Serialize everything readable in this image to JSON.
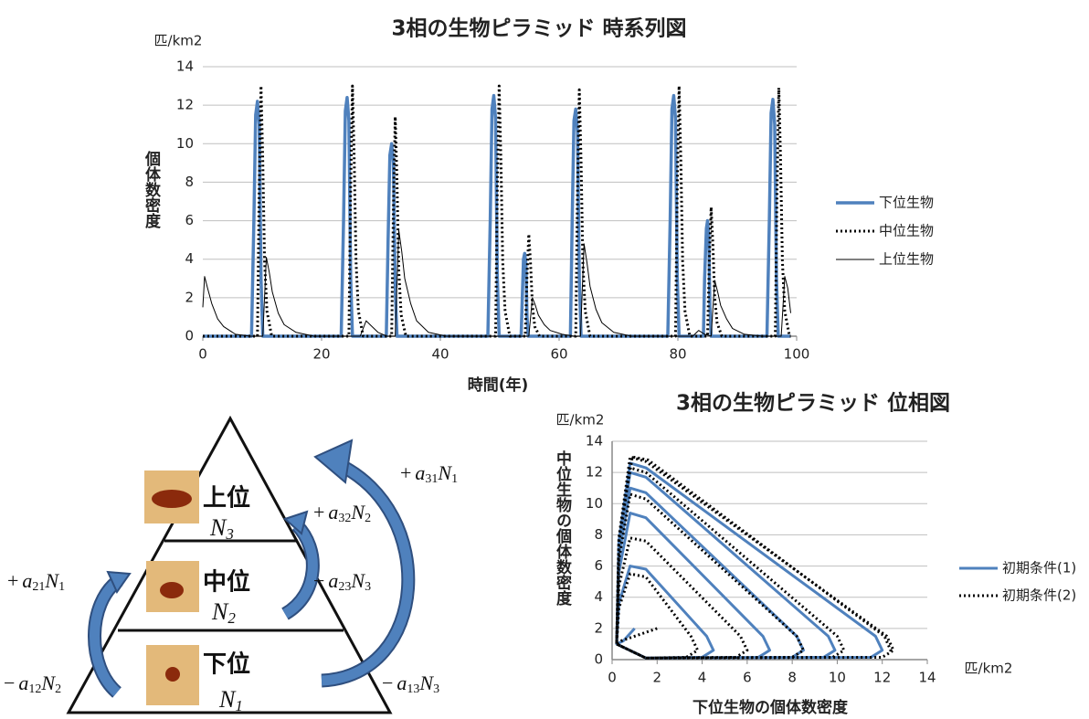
{
  "chart_data": [
    {
      "type": "line",
      "title": "3相の生物ピラミッド 時系列図",
      "y_unit": "匹/km2",
      "ylabel": "個体数密度",
      "xlabel": "時間(年)",
      "xlim": [
        0,
        100
      ],
      "xticks": [
        0,
        20,
        40,
        60,
        80,
        100
      ],
      "ylim": [
        0,
        14
      ],
      "yticks": [
        0,
        2,
        4,
        6,
        8,
        10,
        12,
        14
      ],
      "grid": true,
      "legend": "right",
      "series": [
        {
          "name": "下位生物",
          "color": "#4f81bd",
          "style": "solid",
          "width": 3.5,
          "x": [
            0,
            8.2,
            8.6,
            8.9,
            9.2,
            9.5,
            9.8,
            10.1,
            23.3,
            23.7,
            24.0,
            24.3,
            24.6,
            24.9,
            25.2,
            30.9,
            31.2,
            31.5,
            31.8,
            32.1,
            32.4,
            32.7,
            48.0,
            48.4,
            48.7,
            49.0,
            49.3,
            49.6,
            49.9,
            53.6,
            53.8,
            54.0,
            54.2,
            54.4,
            54.6,
            54.8,
            61.9,
            62.2,
            62.5,
            62.8,
            63.1,
            63.4,
            63.7,
            78.3,
            78.7,
            79.0,
            79.3,
            79.6,
            79.9,
            80.2,
            84.3,
            84.5,
            84.8,
            85.0,
            85.2,
            85.4,
            85.6,
            95.0,
            95.4,
            95.7,
            96.0,
            96.3,
            96.6,
            96.9,
            99
          ],
          "values": [
            0,
            0,
            6,
            11.5,
            12.2,
            11,
            3,
            0,
            0,
            6,
            11.7,
            12.4,
            11.2,
            3,
            0,
            0,
            5,
            9.4,
            10,
            9,
            2.5,
            0,
            0,
            6,
            11.8,
            12.5,
            11.3,
            3,
            0,
            0,
            2,
            4,
            4.3,
            3.8,
            1,
            0,
            0,
            6,
            11.2,
            11.8,
            10.6,
            3,
            0,
            0,
            6,
            11.8,
            12.5,
            11.3,
            3,
            0,
            0,
            3,
            5.6,
            6,
            5.2,
            1.5,
            0,
            0,
            6,
            11.6,
            12.3,
            11,
            3,
            0,
            0
          ]
        },
        {
          "name": "中位生物",
          "color": "#000000",
          "style": "dotted",
          "width": 3,
          "x": [
            0,
            9.2,
            9.5,
            9.8,
            10.1,
            10.4,
            10.8,
            11.6,
            24.6,
            24.9,
            25.2,
            25.5,
            25.8,
            26.2,
            27.0,
            31.8,
            32.1,
            32.4,
            32.7,
            33.0,
            33.4,
            34.2,
            49.3,
            49.6,
            49.9,
            50.2,
            50.5,
            50.9,
            51.7,
            54.3,
            54.6,
            54.9,
            55.2,
            55.5,
            55.9,
            56.7,
            62.8,
            63.1,
            63.4,
            63.7,
            64.0,
            64.4,
            65.2,
            79.6,
            79.9,
            80.2,
            80.5,
            80.8,
            81.2,
            82.0,
            85.0,
            85.3,
            85.6,
            85.9,
            86.2,
            86.6,
            87.4,
            96.4,
            96.7,
            97.0,
            97.3,
            97.6,
            98.0,
            98.8,
            99
          ],
          "values": [
            0,
            0,
            7.8,
            13,
            9.1,
            3.9,
            1.3,
            0,
            0,
            7.8,
            13,
            9.1,
            3.9,
            1.3,
            0,
            0,
            6.8,
            11.4,
            8,
            3.4,
            1.1,
            0,
            0,
            7.8,
            13,
            9.1,
            3.9,
            1.3,
            0,
            0,
            3.2,
            5.3,
            3.7,
            1.6,
            0.5,
            0,
            0,
            7.7,
            12.8,
            9,
            3.8,
            1.3,
            0,
            0,
            7.8,
            13,
            9.1,
            3.9,
            1.3,
            0,
            0,
            4,
            6.7,
            4.7,
            2,
            0.7,
            0,
            0,
            7.7,
            12.9,
            9,
            3.9,
            1.3,
            0,
            0
          ]
        },
        {
          "name": "上位生物",
          "color": "#000000",
          "style": "solid",
          "width": 1,
          "x": [
            0,
            0.3,
            0.8,
            1.5,
            2.5,
            3.5,
            5.5,
            8,
            10.1,
            10.7,
            11.2,
            11.7,
            12.7,
            13.7,
            15.7,
            18.7,
            26.5,
            27.5,
            28.5,
            29.5,
            31,
            32.4,
            33,
            33.5,
            34,
            35,
            36,
            38,
            41,
            54.9,
            55.5,
            56,
            56.5,
            57.5,
            58.5,
            60.5,
            62.5,
            63.6,
            64.2,
            64.7,
            65.2,
            66.2,
            67.2,
            69.2,
            72.2,
            82.5,
            83.5,
            84.5,
            85.6,
            86.2,
            86.7,
            87.2,
            88.2,
            89.2,
            91.2,
            94.2,
            97.4,
            98,
            98.5,
            99
          ],
          "values": [
            1.5,
            3.1,
            2.5,
            1.7,
            0.9,
            0.5,
            0.1,
            0,
            0,
            4.1,
            3.3,
            2.3,
            1.2,
            0.6,
            0.2,
            0,
            0,
            0.8,
            0.5,
            0.2,
            0,
            0,
            5.5,
            4.4,
            3,
            1.7,
            0.8,
            0.2,
            0,
            0,
            2,
            1.6,
            1.1,
            0.6,
            0.3,
            0.1,
            0,
            0,
            4.8,
            3.8,
            2.6,
            1.4,
            0.7,
            0.2,
            0,
            0,
            0.3,
            0.1,
            0,
            2.9,
            2.3,
            1.6,
            0.9,
            0.4,
            0.1,
            0,
            0,
            3.1,
            2.5,
            1.2
          ]
        }
      ]
    },
    {
      "type": "line",
      "title": "3相の生物ピラミッド 位相図",
      "y_unit": "匹/km2",
      "x_unit": "匹/km2",
      "ylabel": "中位生物の個体数密度",
      "xlabel": "下位生物の個体数密度",
      "xlim": [
        0,
        14
      ],
      "xticks": [
        0,
        2,
        4,
        6,
        8,
        10,
        12,
        14
      ],
      "ylim": [
        0,
        14
      ],
      "yticks": [
        0,
        2,
        4,
        6,
        8,
        10,
        12,
        14
      ],
      "grid": true,
      "legend": "right",
      "series": [
        {
          "name": "初期条件(1)",
          "color": "#4f81bd",
          "style": "solid",
          "width": 3,
          "x": [
            1,
            0.5,
            0.2,
            0.3,
            0.8,
            1.5,
            4.2,
            4.5,
            4,
            1.5,
            0.2,
            0.3,
            0.8,
            1.5,
            6.7,
            7,
            6.5,
            1.5,
            0.2,
            0.3,
            0.8,
            1.5,
            8.2,
            8.5,
            8,
            1.5,
            0.2,
            0.3,
            0.8,
            1.5,
            9.6,
            9.9,
            9.4,
            1.5,
            0.2,
            0.3,
            0.8,
            1.5,
            11.7,
            12,
            11.5,
            1.5,
            0.2
          ],
          "values": [
            2,
            1.2,
            1,
            3.6,
            6,
            5.8,
            1.5,
            0.6,
            0.15,
            0.1,
            1,
            5.6,
            9.4,
            9.1,
            1.5,
            0.6,
            0.15,
            0.1,
            1,
            6.6,
            11,
            10.7,
            1.5,
            0.6,
            0.15,
            0.1,
            1,
            7.2,
            12,
            11.7,
            1.5,
            0.6,
            0.15,
            0.1,
            1,
            7.6,
            12.6,
            12.3,
            1.5,
            0.6,
            0.15,
            0.1,
            1
          ]
        },
        {
          "name": "初期条件(2)",
          "color": "#000000",
          "style": "dotted",
          "width": 3,
          "x": [
            2,
            0.4,
            0.2,
            0.3,
            0.8,
            1.5,
            3.5,
            3.8,
            3.3,
            1.5,
            0.2,
            0.3,
            0.8,
            1.5,
            5.7,
            6,
            5.5,
            1.5,
            0.2,
            0.3,
            0.8,
            1.5,
            8.2,
            8.5,
            8,
            1.5,
            0.2,
            0.3,
            0.8,
            1.5,
            10,
            10.3,
            9.8,
            1.5,
            0.2,
            0.3,
            0.8,
            1.5,
            12.2,
            12.5,
            12,
            1.5,
            0.2,
            0.3,
            0.9,
            1.6,
            12.1,
            12.4
          ],
          "values": [
            2,
            1.2,
            1,
            3.3,
            5.5,
            5.3,
            1.5,
            0.6,
            0.15,
            0.1,
            1,
            4.7,
            7.8,
            7.6,
            1.5,
            0.6,
            0.15,
            0.1,
            1,
            6.4,
            10.6,
            10.3,
            1.5,
            0.6,
            0.15,
            0.1,
            1,
            7.4,
            12.3,
            12,
            1.5,
            0.6,
            0.15,
            0.1,
            1,
            7.8,
            13,
            12.7,
            1.5,
            0.6,
            0.15,
            0.1,
            1,
            7.8,
            13,
            12.8,
            1.5,
            0.5
          ]
        }
      ]
    }
  ],
  "diagram": {
    "levels": [
      {
        "name": "上位",
        "var": [
          "N",
          "3"
        ]
      },
      {
        "name": "中位",
        "var": [
          "N",
          "2"
        ]
      },
      {
        "name": "下位",
        "var": [
          "N",
          "1"
        ]
      }
    ],
    "terms": [
      [
        "+",
        "a",
        "31",
        "N",
        "1"
      ],
      [
        "+",
        "a",
        "32",
        "N",
        "2"
      ],
      [
        "+",
        "a",
        "21",
        "N",
        "1"
      ],
      [
        "−",
        "a",
        "23",
        "N",
        "3"
      ],
      [
        "−",
        "a",
        "12",
        "N",
        "2"
      ],
      [
        "−",
        "a",
        "13",
        "N",
        "3"
      ]
    ]
  }
}
